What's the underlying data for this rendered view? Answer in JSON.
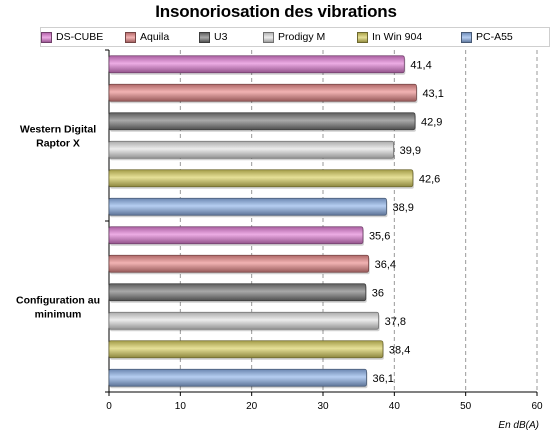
{
  "chart_data": {
    "type": "bar",
    "orientation": "horizontal",
    "title": "Insonoriosation des vibrations",
    "xlabel": "En dB(A)",
    "xlim": [
      0,
      60
    ],
    "xticks": [
      0,
      10,
      20,
      30,
      40,
      50,
      60
    ],
    "grid": "vertical dashed",
    "legend_position": "top",
    "categories": [
      "Western Digital Raptor X",
      "Configuration au minimum"
    ],
    "series": [
      {
        "name": "DS-CUBE",
        "color": "#e27fd6",
        "values": [
          41.4,
          35.6
        ],
        "labels": [
          "41,4",
          "35,6"
        ]
      },
      {
        "name": "Aquila",
        "color": "#e98a8a",
        "values": [
          43.1,
          36.4
        ],
        "labels": [
          "43,1",
          "36,4"
        ]
      },
      {
        "name": "U3",
        "color": "#7a7a7a",
        "values": [
          42.9,
          36.0
        ],
        "labels": [
          "42,9",
          "36"
        ]
      },
      {
        "name": "Prodigy M",
        "color": "#e2e2e2",
        "values": [
          39.9,
          37.8
        ],
        "labels": [
          "39,9",
          "37,8"
        ]
      },
      {
        "name": "In Win 904",
        "color": "#d9cf60",
        "values": [
          42.6,
          38.4
        ],
        "labels": [
          "42,6",
          "38,4"
        ]
      },
      {
        "name": "PC-A55",
        "color": "#8fb3ea",
        "values": [
          38.9,
          36.1
        ],
        "labels": [
          "38,9",
          "36,1"
        ]
      }
    ]
  },
  "category_label_lines": [
    [
      "Western Digital",
      "Raptor X"
    ],
    [
      "Configuration au",
      "minimum"
    ]
  ]
}
